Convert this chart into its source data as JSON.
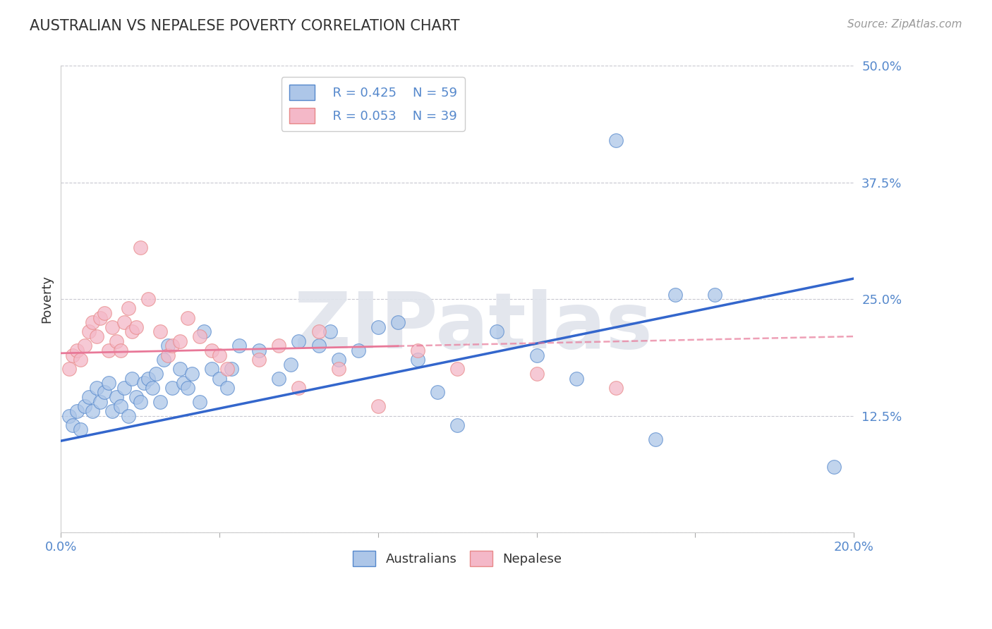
{
  "title": "AUSTRALIAN VS NEPALESE POVERTY CORRELATION CHART",
  "source": "Source: ZipAtlas.com",
  "ylabel": "Poverty",
  "xlim": [
    0.0,
    0.2
  ],
  "ylim": [
    0.0,
    0.5
  ],
  "xticks": [
    0.0,
    0.04,
    0.08,
    0.12,
    0.16,
    0.2
  ],
  "xticklabels_ends": [
    "0.0%",
    "20.0%"
  ],
  "yticks": [
    0.0,
    0.125,
    0.25,
    0.375,
    0.5
  ],
  "yticklabels": [
    "",
    "12.5%",
    "25.0%",
    "37.5%",
    "50.0%"
  ],
  "grid_color": "#c8c8d0",
  "background_color": "#ffffff",
  "blue_color": "#adc6e8",
  "pink_color": "#f4b8c8",
  "blue_edge_color": "#5588cc",
  "pink_edge_color": "#e88888",
  "blue_line_color": "#3366cc",
  "pink_line_color": "#e87898",
  "legend_R_blue": "R = 0.425",
  "legend_N_blue": "N = 59",
  "legend_R_pink": "R = 0.053",
  "legend_N_pink": "N = 39",
  "legend_label_blue": "Australians",
  "legend_label_pink": "Nepalese",
  "watermark": "ZIPatlas",
  "title_color": "#333333",
  "axis_label_color": "#5588cc",
  "blue_scatter_x": [
    0.002,
    0.003,
    0.004,
    0.005,
    0.006,
    0.007,
    0.008,
    0.009,
    0.01,
    0.011,
    0.012,
    0.013,
    0.014,
    0.015,
    0.016,
    0.017,
    0.018,
    0.019,
    0.02,
    0.021,
    0.022,
    0.023,
    0.024,
    0.025,
    0.026,
    0.027,
    0.028,
    0.03,
    0.031,
    0.032,
    0.033,
    0.035,
    0.036,
    0.038,
    0.04,
    0.042,
    0.043,
    0.045,
    0.05,
    0.055,
    0.058,
    0.06,
    0.065,
    0.068,
    0.07,
    0.075,
    0.08,
    0.085,
    0.09,
    0.095,
    0.1,
    0.11,
    0.12,
    0.13,
    0.14,
    0.15,
    0.155,
    0.165,
    0.195
  ],
  "blue_scatter_y": [
    0.125,
    0.115,
    0.13,
    0.11,
    0.135,
    0.145,
    0.13,
    0.155,
    0.14,
    0.15,
    0.16,
    0.13,
    0.145,
    0.135,
    0.155,
    0.125,
    0.165,
    0.145,
    0.14,
    0.16,
    0.165,
    0.155,
    0.17,
    0.14,
    0.185,
    0.2,
    0.155,
    0.175,
    0.16,
    0.155,
    0.17,
    0.14,
    0.215,
    0.175,
    0.165,
    0.155,
    0.175,
    0.2,
    0.195,
    0.165,
    0.18,
    0.205,
    0.2,
    0.215,
    0.185,
    0.195,
    0.22,
    0.225,
    0.185,
    0.15,
    0.115,
    0.215,
    0.19,
    0.165,
    0.42,
    0.1,
    0.255,
    0.255,
    0.07
  ],
  "pink_scatter_x": [
    0.002,
    0.003,
    0.004,
    0.005,
    0.006,
    0.007,
    0.008,
    0.009,
    0.01,
    0.011,
    0.012,
    0.013,
    0.014,
    0.015,
    0.016,
    0.017,
    0.018,
    0.019,
    0.02,
    0.022,
    0.025,
    0.027,
    0.028,
    0.03,
    0.032,
    0.035,
    0.038,
    0.04,
    0.042,
    0.05,
    0.055,
    0.06,
    0.065,
    0.07,
    0.08,
    0.09,
    0.1,
    0.12,
    0.14
  ],
  "pink_scatter_y": [
    0.175,
    0.19,
    0.195,
    0.185,
    0.2,
    0.215,
    0.225,
    0.21,
    0.23,
    0.235,
    0.195,
    0.22,
    0.205,
    0.195,
    0.225,
    0.24,
    0.215,
    0.22,
    0.305,
    0.25,
    0.215,
    0.19,
    0.2,
    0.205,
    0.23,
    0.21,
    0.195,
    0.19,
    0.175,
    0.185,
    0.2,
    0.155,
    0.215,
    0.175,
    0.135,
    0.195,
    0.175,
    0.17,
    0.155
  ],
  "blue_trend": [
    0.0,
    0.2,
    0.098,
    0.272
  ],
  "pink_trend": [
    0.0,
    0.2,
    0.192,
    0.21
  ],
  "pink_trend_solid_end": 0.085,
  "pink_trend_dash_start": 0.085
}
